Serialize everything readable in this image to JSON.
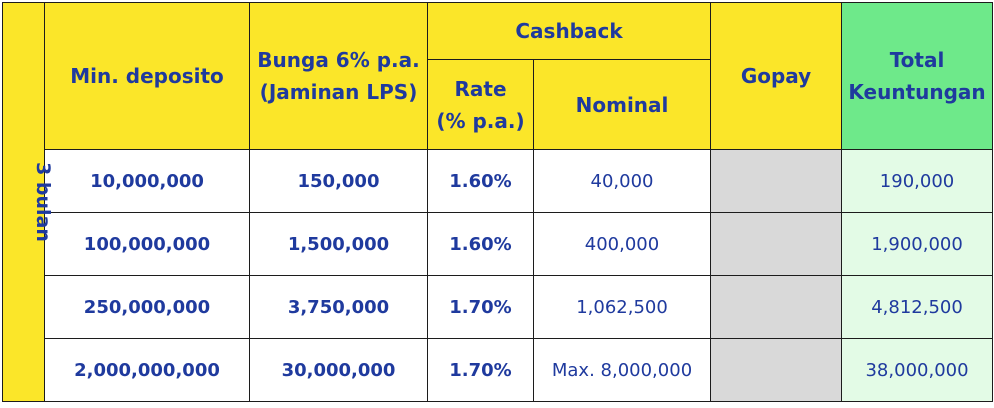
{
  "header": {
    "min_deposito": "Min. deposito",
    "bunga_line1": "Bunga 6% p.a.",
    "bunga_line2": "(Jaminan LPS)",
    "cashback": "Cashback",
    "rate_line1": "Rate",
    "rate_line2": "(% p.a.)",
    "nominal": "Nominal",
    "gopay": "Gopay",
    "total_line1": "Total",
    "total_line2": "Keuntungan"
  },
  "period_label": "3 bulan",
  "rows": [
    {
      "min": "10,000,000",
      "bunga": "150,000",
      "rate": "1.60%",
      "nominal": "40,000",
      "gopay": "",
      "total": "190,000"
    },
    {
      "min": "100,000,000",
      "bunga": "1,500,000",
      "rate": "1.60%",
      "nominal": "400,000",
      "gopay": "",
      "total": "1,900,000"
    },
    {
      "min": "250,000,000",
      "bunga": "3,750,000",
      "rate": "1.70%",
      "nominal": "1,062,500",
      "gopay": "",
      "total": "4,812,500"
    },
    {
      "min": "2,000,000,000",
      "bunga": "30,000,000",
      "rate": "1.70%",
      "nominal": "Max. 8,000,000",
      "gopay": "",
      "total": "38,000,000"
    }
  ],
  "colors": {
    "header_yellow": "#fbe629",
    "header_green": "#6ee98a",
    "text_blue": "#1f3a9e",
    "gopay_gray": "#d9d9d9",
    "total_light_green": "#e3fbe6"
  }
}
